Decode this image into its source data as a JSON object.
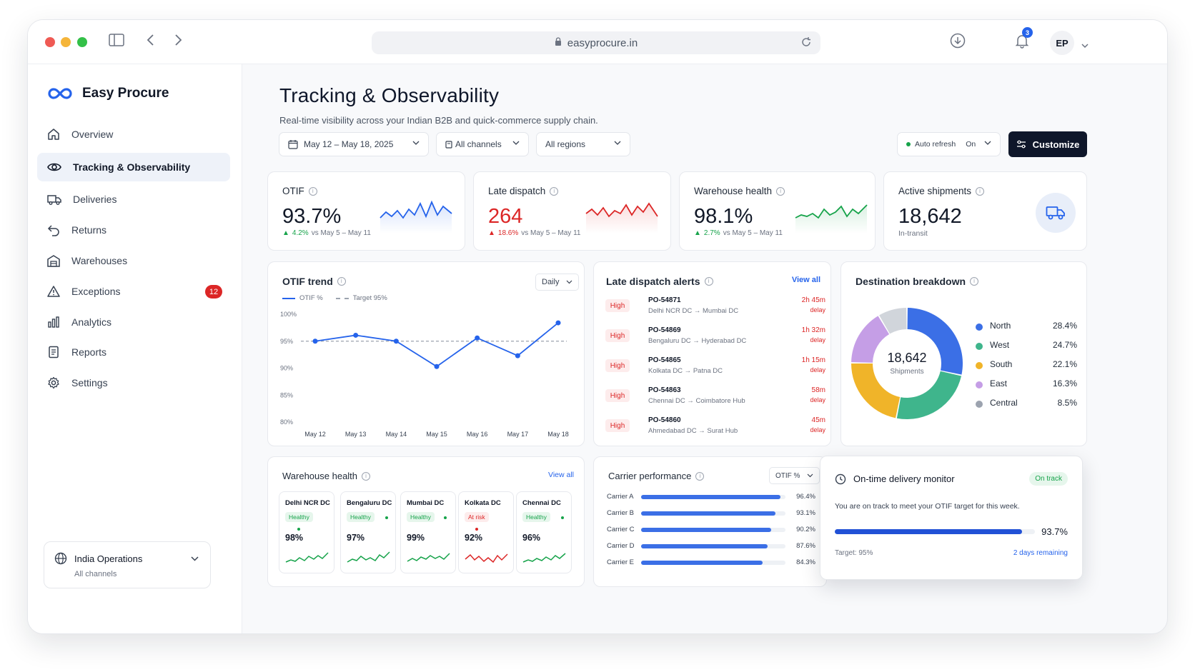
{
  "browser": {
    "url": "easyprocure.in",
    "notification_count": "3",
    "user_initials": "EP"
  },
  "app": {
    "name": "Easy Procure"
  },
  "sidebar": {
    "items": [
      {
        "label": "Overview",
        "icon": "home-icon"
      },
      {
        "label": "Tracking & Observability",
        "icon": "eye-icon",
        "active": true
      },
      {
        "label": "Deliveries",
        "icon": "truck-icon"
      },
      {
        "label": "Returns",
        "icon": "return-icon"
      },
      {
        "label": "Warehouses",
        "icon": "warehouse-icon"
      },
      {
        "label": "Exceptions",
        "icon": "warning-icon",
        "badge": "12"
      },
      {
        "label": "Analytics",
        "icon": "bar-chart-icon"
      },
      {
        "label": "Reports",
        "icon": "document-icon"
      },
      {
        "label": "Settings",
        "icon": "gear-icon"
      }
    ],
    "org": {
      "name": "India Operations",
      "sub": "All channels"
    }
  },
  "page": {
    "title": "Tracking & Observability",
    "subtitle": "Real-time visibility across your Indian B2B and quick-commerce supply chain."
  },
  "filters": {
    "date": "May 12 – May 18, 2025",
    "channels": "All channels",
    "regions": "All regions",
    "auto_refresh_label": "Auto refresh",
    "auto_refresh_value": "On",
    "customize": "Customize"
  },
  "kpis": [
    {
      "title": "OTIF",
      "value": "93.7%",
      "delta": "4.2%",
      "compare": "vs May 5 – May 11",
      "color": "#2563eb"
    },
    {
      "title": "Late dispatch",
      "value": "264",
      "delta": "18.6%",
      "compare": "vs May 5 – May 11",
      "color": "#dc2626"
    },
    {
      "title": "Warehouse health",
      "value": "98.1%",
      "delta": "2.7%",
      "compare": "vs May 5 – May 11",
      "color": "#16a34a"
    },
    {
      "title": "Active shipments",
      "value": "18,642",
      "sub": "In-transit"
    }
  ],
  "otif_trend": {
    "title": "OTIF trend",
    "period": "Daily",
    "legend_otif": "OTIF %",
    "legend_target": "Target 95%"
  },
  "chart_data": {
    "type": "line",
    "x": [
      "May 12",
      "May 13",
      "May 14",
      "May 15",
      "May 16",
      "May 17",
      "May 18"
    ],
    "series": [
      {
        "name": "OTIF %",
        "values": [
          95.0,
          96.1,
          95.0,
          90.3,
          95.6,
          92.3,
          98.4
        ]
      }
    ],
    "target": 95,
    "y_ticks": [
      "100%",
      "95%",
      "90%",
      "85%",
      "80%"
    ],
    "ylim": [
      80,
      100
    ],
    "grid": false
  },
  "alerts": {
    "title": "Late dispatch alerts",
    "view_all": "View all",
    "items": [
      {
        "severity": "High",
        "po": "PO-54871",
        "route": "Delhi NCR DC → Mumbai DC",
        "time": "2h 45m",
        "label": "delay"
      },
      {
        "severity": "High",
        "po": "PO-54869",
        "route": "Bengaluru DC → Hyderabad DC",
        "time": "1h 32m",
        "label": "delay"
      },
      {
        "severity": "High",
        "po": "PO-54865",
        "route": "Kolkata DC → Patna DC",
        "time": "1h 15m",
        "label": "delay"
      },
      {
        "severity": "High",
        "po": "PO-54863",
        "route": "Chennai DC → Coimbatore Hub",
        "time": "58m",
        "label": "delay"
      },
      {
        "severity": "High",
        "po": "PO-54860",
        "route": "Ahmedabad DC → Surat Hub",
        "time": "45m",
        "label": "delay"
      }
    ]
  },
  "destination": {
    "title": "Destination breakdown",
    "total": "18,642",
    "total_label": "Shipments",
    "items": [
      {
        "name": "North",
        "value": "28.4%",
        "pct": 28.4,
        "color": "#3b6fe6"
      },
      {
        "name": "West",
        "value": "24.7%",
        "pct": 24.7,
        "color": "#3fb58c"
      },
      {
        "name": "South",
        "value": "22.1%",
        "pct": 22.1,
        "color": "#f0b429"
      },
      {
        "name": "East",
        "value": "16.3%",
        "pct": 16.3,
        "color": "#c59ee6"
      },
      {
        "name": "Central",
        "value": "8.5%",
        "pct": 8.5,
        "color": "#d1d5db"
      }
    ]
  },
  "warehouse_health": {
    "title": "Warehouse health",
    "view_all": "View all",
    "items": [
      {
        "name": "Delhi NCR DC",
        "status": "Healthy",
        "value": "98%",
        "ok": true
      },
      {
        "name": "Bengaluru DC",
        "status": "Healthy",
        "value": "97%",
        "ok": true
      },
      {
        "name": "Mumbai DC",
        "status": "Healthy",
        "value": "99%",
        "ok": true
      },
      {
        "name": "Kolkata DC",
        "status": "At risk",
        "value": "92%",
        "ok": false
      },
      {
        "name": "Chennai DC",
        "status": "Healthy",
        "value": "96%",
        "ok": true
      }
    ]
  },
  "carriers": {
    "title": "Carrier performance",
    "metric": "OTIF %",
    "items": [
      {
        "name": "Carrier A",
        "value": "96.4%",
        "pct": 96.4
      },
      {
        "name": "Carrier B",
        "value": "93.1%",
        "pct": 93.1
      },
      {
        "name": "Carrier C",
        "value": "90.2%",
        "pct": 90.2
      },
      {
        "name": "Carrier D",
        "value": "87.6%",
        "pct": 87.6
      },
      {
        "name": "Carrier E",
        "value": "84.3%",
        "pct": 84.3
      }
    ]
  },
  "monitor": {
    "title": "On-time delivery monitor",
    "status": "On track",
    "message": "You are on track to meet your OTIF target for this week.",
    "value": "93.7%",
    "progress": 0.937,
    "target": "Target: 95%",
    "remaining": "2 days remaining"
  }
}
